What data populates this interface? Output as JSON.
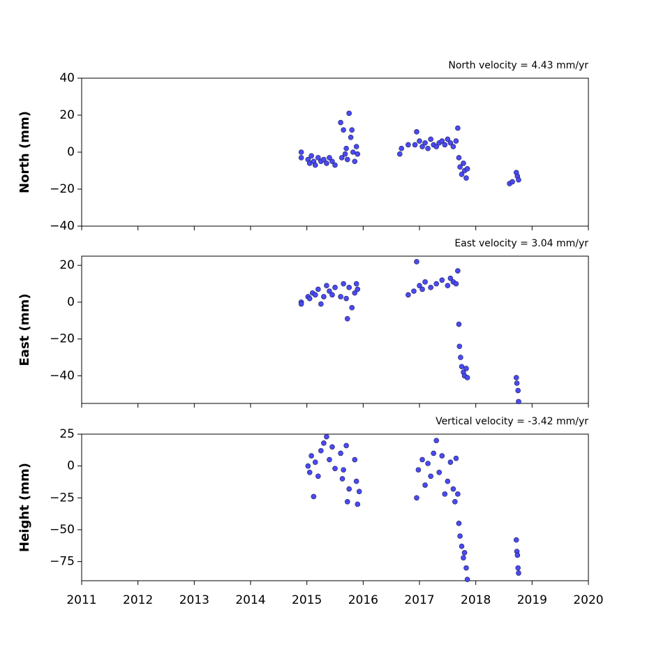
{
  "chart_data": [
    {
      "type": "scatter",
      "title": "North velocity = 4.43 mm/yr",
      "ylabel": "North (mm)",
      "color": "#4a4af2",
      "xlim": [
        2011,
        2020
      ],
      "xticks": [
        2011,
        2012,
        2013,
        2014,
        2015,
        2016,
        2017,
        2018,
        2019,
        2020
      ],
      "xtick_labels": false,
      "ylim": [
        -40,
        40
      ],
      "yticks": [
        {
          "value": -40,
          "label": "−40"
        },
        {
          "value": -20,
          "label": "−20"
        },
        0,
        20,
        40
      ],
      "x": [
        2014.9,
        2014.9,
        2015.02,
        2015.05,
        2015.08,
        2015.12,
        2015.15,
        2015.2,
        2015.25,
        2015.3,
        2015.35,
        2015.4,
        2015.45,
        2015.5,
        2015.6,
        2015.62,
        2015.65,
        2015.68,
        2015.7,
        2015.72,
        2015.75,
        2015.78,
        2015.8,
        2015.82,
        2015.85,
        2015.88,
        2015.9,
        2016.65,
        2016.68,
        2016.8,
        2016.92,
        2016.95,
        2017.0,
        2017.05,
        2017.1,
        2017.15,
        2017.2,
        2017.25,
        2017.3,
        2017.35,
        2017.4,
        2017.45,
        2017.5,
        2017.55,
        2017.6,
        2017.65,
        2017.68,
        2017.7,
        2017.72,
        2017.75,
        2017.78,
        2017.8,
        2017.83,
        2017.85,
        2018.6,
        2018.65,
        2018.72,
        2018.74,
        2018.76
      ],
      "values": [
        0,
        -3,
        -4,
        -6,
        -2,
        -5,
        -7,
        -3,
        -5,
        -4,
        -6,
        -3,
        -5,
        -7,
        16,
        -3,
        12,
        -1,
        2,
        -4,
        21,
        8,
        12,
        0,
        -5,
        3,
        -1,
        -1,
        2,
        4,
        4,
        11,
        6,
        3,
        5,
        2,
        7,
        4,
        3,
        5,
        6,
        4,
        7,
        5,
        3,
        6,
        13,
        -3,
        -8,
        -12,
        -6,
        -10,
        -14,
        -9,
        -17,
        -16,
        -11,
        -13,
        -15
      ]
    },
    {
      "type": "scatter",
      "title": "East velocity = 3.04 mm/yr",
      "ylabel": "East (mm)",
      "color": "#4a4af2",
      "xlim": [
        2011,
        2020
      ],
      "xticks": [
        2011,
        2012,
        2013,
        2014,
        2015,
        2016,
        2017,
        2018,
        2019,
        2020
      ],
      "xtick_labels": false,
      "ylim": [
        -55,
        25
      ],
      "yticks": [
        {
          "value": -40,
          "label": "−40"
        },
        {
          "value": -20,
          "label": "−20"
        },
        0,
        20
      ],
      "x": [
        2014.9,
        2014.9,
        2015.02,
        2015.05,
        2015.1,
        2015.15,
        2015.2,
        2015.25,
        2015.3,
        2015.35,
        2015.4,
        2015.45,
        2015.5,
        2015.6,
        2015.65,
        2015.7,
        2015.72,
        2015.75,
        2015.8,
        2015.85,
        2015.88,
        2015.9,
        2016.8,
        2016.9,
        2016.95,
        2017.0,
        2017.05,
        2017.1,
        2017.2,
        2017.3,
        2017.4,
        2017.5,
        2017.55,
        2017.6,
        2017.65,
        2017.68,
        2017.7,
        2017.71,
        2017.73,
        2017.75,
        2017.78,
        2017.8,
        2017.83,
        2017.85,
        2018.72,
        2018.73,
        2018.75,
        2018.76
      ],
      "values": [
        0,
        -1,
        3,
        2,
        5,
        4,
        7,
        -1,
        3,
        9,
        6,
        4,
        8,
        3,
        10,
        2,
        -9,
        8,
        -3,
        5,
        10,
        7,
        4,
        6,
        22,
        9,
        7,
        11,
        8,
        10,
        12,
        9,
        13,
        11,
        10,
        17,
        -12,
        -24,
        -30,
        -35,
        -38,
        -40,
        -36,
        -41,
        -41,
        -44,
        -48,
        -54
      ]
    },
    {
      "type": "scatter",
      "title": "Vertical velocity = -3.42 mm/yr",
      "ylabel": "Height (mm)",
      "color": "#4a4af2",
      "xlim": [
        2011,
        2020
      ],
      "xticks": [
        2011,
        2012,
        2013,
        2014,
        2015,
        2016,
        2017,
        2018,
        2019,
        2020
      ],
      "xtick_labels": true,
      "ylim": [
        -90,
        25
      ],
      "yticks": [
        {
          "value": -75,
          "label": "−75"
        },
        {
          "value": -50,
          "label": "−50"
        },
        {
          "value": -25,
          "label": "−25"
        },
        0,
        25
      ],
      "x": [
        2015.02,
        2015.05,
        2015.08,
        2015.12,
        2015.15,
        2015.2,
        2015.25,
        2015.3,
        2015.35,
        2015.4,
        2015.45,
        2015.5,
        2015.6,
        2015.63,
        2015.65,
        2015.7,
        2015.72,
        2015.75,
        2015.85,
        2015.88,
        2015.9,
        2015.93,
        2016.95,
        2016.98,
        2017.05,
        2017.1,
        2017.15,
        2017.2,
        2017.25,
        2017.3,
        2017.35,
        2017.4,
        2017.45,
        2017.5,
        2017.55,
        2017.6,
        2017.63,
        2017.65,
        2017.68,
        2017.7,
        2017.72,
        2017.75,
        2017.78,
        2017.8,
        2017.83,
        2017.85,
        2018.72,
        2018.73,
        2018.74,
        2018.75,
        2018.76
      ],
      "values": [
        0,
        -5,
        8,
        -24,
        3,
        -8,
        12,
        18,
        23,
        5,
        15,
        -2,
        10,
        -10,
        -3,
        16,
        -28,
        -18,
        5,
        -12,
        -30,
        -20,
        -25,
        -3,
        5,
        -15,
        2,
        -8,
        10,
        20,
        -5,
        8,
        -22,
        -12,
        3,
        -18,
        -28,
        6,
        -22,
        -45,
        -55,
        -63,
        -72,
        -68,
        -80,
        -89,
        -58,
        -67,
        -70,
        -80,
        -84
      ]
    }
  ]
}
